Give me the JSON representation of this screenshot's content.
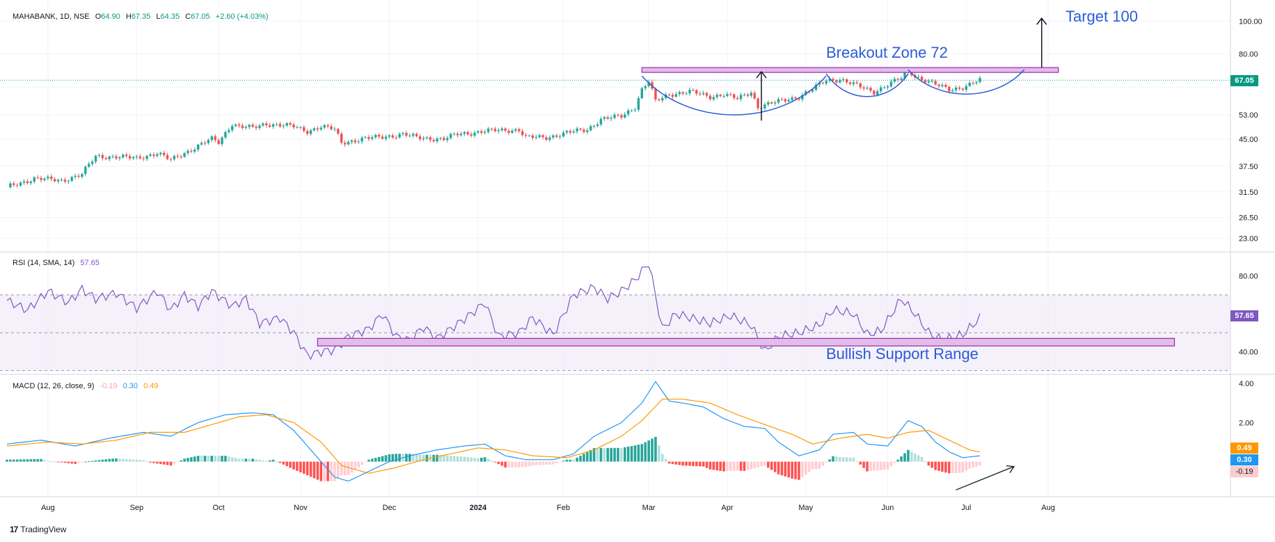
{
  "header": {
    "symbol": "MAHABANK, 1D, NSE",
    "o_label": "O",
    "o_value": "64.90",
    "h_label": "H",
    "h_value": "67.35",
    "l_label": "L",
    "l_value": "64.35",
    "c_label": "C",
    "c_value": "67.05",
    "change": "+2.60 (+4.03%)"
  },
  "rsi_header": {
    "label": "RSI (14, SMA, 14)",
    "value": "57.65"
  },
  "macd_header": {
    "label": "MACD (12, 26, close, 9)",
    "hist": "-0.19",
    "macd": "0.30",
    "signal": "0.49"
  },
  "annotations": {
    "target": "Target 100",
    "breakout": "Breakout Zone 72",
    "support": "Bullish Support Range"
  },
  "price_tag": "67.05",
  "rsi_tag": "57.65",
  "macd_tags": {
    "signal": "0.49",
    "macd": "0.30",
    "hist": "-0.19"
  },
  "brand": "TradingView",
  "colors": {
    "up": "#26a69a",
    "down": "#ef5350",
    "rsi": "#7e57c2",
    "macd": "#2196f3",
    "signal": "#ff9800",
    "annotation": "#2a5bd7",
    "zone_fill": "#e1bee7",
    "zone_stroke": "#9c27b0"
  },
  "chart_data": [
    {
      "type": "candlestick",
      "title": "MAHABANK, 1D, NSE",
      "x_ticks": [
        "Aug",
        "Sep",
        "Oct",
        "Nov",
        "Dec",
        "2024",
        "Feb",
        "Mar",
        "Apr",
        "May",
        "Jun",
        "Jul",
        "Aug"
      ],
      "y_ticks": [
        23.0,
        26.5,
        31.5,
        37.5,
        45.0,
        53.0,
        64.0,
        80.0,
        100.0
      ],
      "y_tick_labels": [
        "23.00",
        "26.50",
        "31.50",
        "37.50",
        "45.00",
        "53.00",
        "",
        "80.00",
        "100.00"
      ],
      "y_scale": "log",
      "ylim": [
        21,
        110
      ],
      "last_close": 67.05,
      "close_path": [
        [
          0,
          32.5
        ],
        [
          8,
          34.5
        ],
        [
          16,
          34
        ],
        [
          22,
          35.5
        ],
        [
          26,
          40
        ],
        [
          32,
          40
        ],
        [
          38,
          39.5
        ],
        [
          44,
          41
        ],
        [
          48,
          39
        ],
        [
          56,
          43
        ],
        [
          60,
          45
        ],
        [
          62,
          44
        ],
        [
          66,
          50
        ],
        [
          68,
          49
        ],
        [
          72,
          48.5
        ],
        [
          76,
          50
        ],
        [
          84,
          49
        ],
        [
          88,
          47.5
        ],
        [
          92,
          49
        ],
        [
          96,
          48
        ],
        [
          98,
          44
        ],
        [
          104,
          45
        ],
        [
          112,
          46
        ],
        [
          116,
          46.5
        ],
        [
          120,
          45.5
        ],
        [
          128,
          45
        ],
        [
          132,
          46.5
        ],
        [
          140,
          47.5
        ],
        [
          150,
          48
        ],
        [
          152,
          45.5
        ],
        [
          158,
          45.5
        ],
        [
          164,
          47
        ],
        [
          170,
          48
        ],
        [
          174,
          51.5
        ],
        [
          180,
          52.5
        ],
        [
          184,
          56
        ],
        [
          186,
          63
        ],
        [
          188,
          66.5
        ],
        [
          190,
          58
        ],
        [
          194,
          61
        ],
        [
          200,
          62
        ],
        [
          206,
          60
        ],
        [
          210,
          61
        ],
        [
          214,
          59
        ],
        [
          218,
          62
        ],
        [
          220,
          56
        ],
        [
          226,
          58
        ],
        [
          232,
          60
        ],
        [
          236,
          63
        ],
        [
          240,
          67
        ],
        [
          244,
          67.5
        ],
        [
          250,
          64
        ],
        [
          254,
          62
        ],
        [
          258,
          65
        ],
        [
          262,
          68
        ],
        [
          264,
          72
        ],
        [
          266,
          69
        ],
        [
          272,
          65
        ],
        [
          276,
          63
        ],
        [
          280,
          64
        ],
        [
          282,
          65
        ],
        [
          285,
          67.05
        ]
      ],
      "breakout_zone": {
        "value": 72,
        "x_from": 186,
        "x_to": 308
      },
      "target": 100,
      "cup_pattern": [
        {
          "x_from": 186,
          "x_to": 240,
          "top": 69,
          "bottom": 53
        },
        {
          "x_from": 240,
          "x_to": 264,
          "top": 70,
          "bottom": 60
        },
        {
          "x_from": 264,
          "x_to": 298,
          "top": 72,
          "bottom": 61
        }
      ]
    },
    {
      "type": "line",
      "title": "RSI (14, SMA, 14)",
      "y_ticks": [
        40,
        57.65,
        80
      ],
      "y_tick_labels": [
        "40.00",
        "",
        "80.00"
      ],
      "ylim": [
        28,
        92
      ],
      "band": [
        30,
        70
      ],
      "midline": 50,
      "last": 57.65,
      "support_range": {
        "from": 43,
        "to": 47,
        "x_from": 91,
        "x_to": 342
      },
      "values": [
        [
          0,
          67
        ],
        [
          6,
          62
        ],
        [
          12,
          72
        ],
        [
          18,
          66
        ],
        [
          22,
          73
        ],
        [
          26,
          68
        ],
        [
          32,
          71
        ],
        [
          38,
          63
        ],
        [
          44,
          72
        ],
        [
          48,
          62
        ],
        [
          52,
          70
        ],
        [
          56,
          64
        ],
        [
          60,
          72
        ],
        [
          66,
          64
        ],
        [
          70,
          68
        ],
        [
          74,
          55
        ],
        [
          80,
          58
        ],
        [
          84,
          50
        ],
        [
          88,
          38
        ],
        [
          92,
          40
        ],
        [
          96,
          41
        ],
        [
          100,
          48
        ],
        [
          106,
          52
        ],
        [
          110,
          60
        ],
        [
          114,
          48
        ],
        [
          118,
          46
        ],
        [
          122,
          53
        ],
        [
          126,
          47
        ],
        [
          130,
          52
        ],
        [
          136,
          60
        ],
        [
          140,
          66
        ],
        [
          144,
          48
        ],
        [
          150,
          50
        ],
        [
          154,
          58
        ],
        [
          160,
          49
        ],
        [
          166,
          70
        ],
        [
          172,
          74
        ],
        [
          176,
          68
        ],
        [
          180,
          72
        ],
        [
          184,
          78
        ],
        [
          188,
          87
        ],
        [
          192,
          52
        ],
        [
          196,
          60
        ],
        [
          200,
          58
        ],
        [
          206,
          55
        ],
        [
          212,
          59
        ],
        [
          218,
          54
        ],
        [
          222,
          40
        ],
        [
          226,
          48
        ],
        [
          232,
          50
        ],
        [
          238,
          54
        ],
        [
          242,
          62
        ],
        [
          248,
          60
        ],
        [
          252,
          49
        ],
        [
          256,
          51
        ],
        [
          262,
          68
        ],
        [
          266,
          60
        ],
        [
          270,
          50
        ],
        [
          274,
          46
        ],
        [
          280,
          49
        ],
        [
          285,
          57.65
        ]
      ]
    },
    {
      "type": "line+histogram",
      "title": "MACD (12, 26, close, 9)",
      "y_ticks": [
        -0.19,
        0.3,
        0.49,
        2.0,
        4.0
      ],
      "y_tick_labels": [
        "",
        "",
        "",
        "2.00",
        "4.00"
      ],
      "ylim": [
        -1.8,
        4.4
      ],
      "series": [
        {
          "name": "MACD",
          "values": [
            [
              0,
              0.9
            ],
            [
              10,
              1.1
            ],
            [
              20,
              0.8
            ],
            [
              30,
              1.2
            ],
            [
              40,
              1.5
            ],
            [
              48,
              1.3
            ],
            [
              56,
              2.0
            ],
            [
              64,
              2.4
            ],
            [
              72,
              2.5
            ],
            [
              78,
              2.4
            ],
            [
              84,
              1.6
            ],
            [
              90,
              0.4
            ],
            [
              96,
              -0.8
            ],
            [
              100,
              -1.0
            ],
            [
              106,
              -0.5
            ],
            [
              112,
              0.0
            ],
            [
              118,
              0.3
            ],
            [
              126,
              0.6
            ],
            [
              134,
              0.8
            ],
            [
              140,
              0.9
            ],
            [
              146,
              0.3
            ],
            [
              152,
              0.1
            ],
            [
              160,
              0.1
            ],
            [
              166,
              0.4
            ],
            [
              172,
              1.3
            ],
            [
              180,
              2.0
            ],
            [
              186,
              3.0
            ],
            [
              190,
              4.1
            ],
            [
              194,
              3.1
            ],
            [
              198,
              3.0
            ],
            [
              204,
              2.8
            ],
            [
              210,
              2.2
            ],
            [
              216,
              1.8
            ],
            [
              222,
              1.7
            ],
            [
              226,
              1.0
            ],
            [
              232,
              0.3
            ],
            [
              238,
              0.6
            ],
            [
              242,
              1.4
            ],
            [
              248,
              1.5
            ],
            [
              252,
              0.9
            ],
            [
              258,
              0.8
            ],
            [
              264,
              2.1
            ],
            [
              268,
              1.8
            ],
            [
              272,
              1.0
            ],
            [
              276,
              0.5
            ],
            [
              280,
              0.2
            ],
            [
              285,
              0.3
            ]
          ]
        },
        {
          "name": "Signal",
          "values": [
            [
              0,
              0.8
            ],
            [
              12,
              1.0
            ],
            [
              22,
              0.9
            ],
            [
              32,
              1.1
            ],
            [
              42,
              1.5
            ],
            [
              52,
              1.5
            ],
            [
              60,
              1.9
            ],
            [
              68,
              2.3
            ],
            [
              76,
              2.4
            ],
            [
              84,
              2.0
            ],
            [
              92,
              1.0
            ],
            [
              98,
              -0.2
            ],
            [
              106,
              -0.6
            ],
            [
              114,
              -0.3
            ],
            [
              122,
              0.1
            ],
            [
              130,
              0.4
            ],
            [
              138,
              0.7
            ],
            [
              146,
              0.6
            ],
            [
              154,
              0.3
            ],
            [
              164,
              0.2
            ],
            [
              172,
              0.6
            ],
            [
              180,
              1.3
            ],
            [
              186,
              2.1
            ],
            [
              192,
              3.2
            ],
            [
              198,
              3.2
            ],
            [
              206,
              3.0
            ],
            [
              214,
              2.4
            ],
            [
              222,
              1.9
            ],
            [
              230,
              1.4
            ],
            [
              236,
              0.9
            ],
            [
              244,
              1.2
            ],
            [
              252,
              1.4
            ],
            [
              258,
              1.2
            ],
            [
              264,
              1.5
            ],
            [
              270,
              1.6
            ],
            [
              276,
              1.1
            ],
            [
              282,
              0.6
            ],
            [
              285,
              0.49
            ]
          ]
        }
      ],
      "histogram_last": -0.19
    }
  ]
}
